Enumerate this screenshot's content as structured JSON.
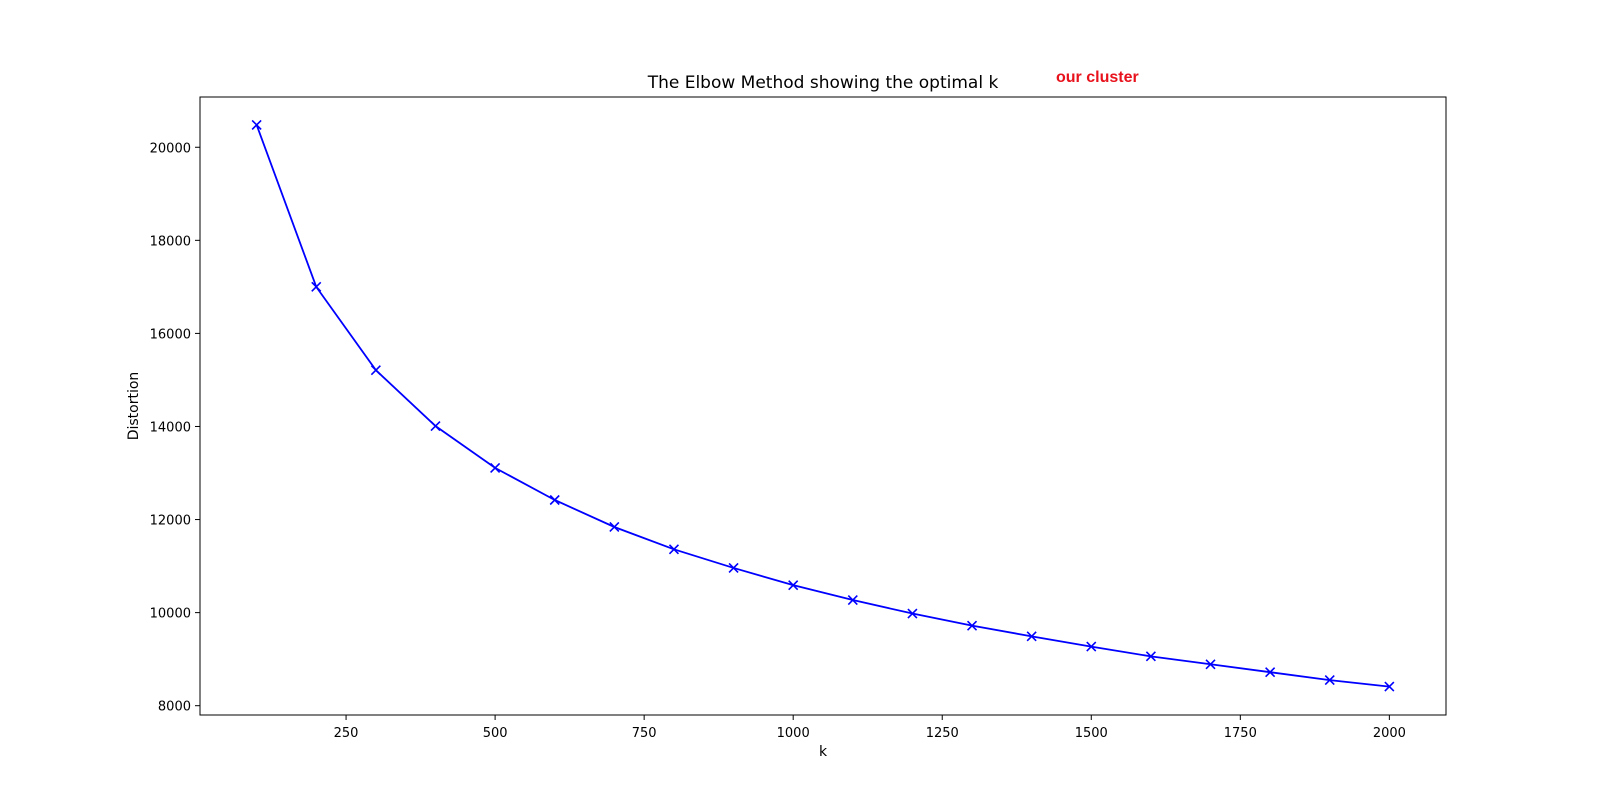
{
  "chart_data": {
    "type": "line",
    "title": "The Elbow Method showing the optimal k",
    "xlabel": "k",
    "ylabel": "Distortion",
    "annotation": {
      "text": "our cluster",
      "color": "#e8121c"
    },
    "series": [
      {
        "color": "#0000ff",
        "marker": "x",
        "x": [
          100,
          200,
          300,
          400,
          500,
          600,
          700,
          800,
          900,
          1000,
          1100,
          1200,
          1300,
          1400,
          1500,
          1600,
          1700,
          1800,
          1900,
          2000
        ],
        "y": [
          20480,
          17000,
          15210,
          14010,
          13110,
          12420,
          11840,
          11360,
          10960,
          10590,
          10270,
          9980,
          9720,
          9490,
          9270,
          9060,
          8890,
          8720,
          8550,
          8410
        ]
      }
    ],
    "xlim": [
      5,
      2095
    ],
    "ylim": [
      7800,
      21080
    ],
    "xticks": [
      250,
      500,
      750,
      1000,
      1250,
      1500,
      1750,
      2000
    ],
    "yticks": [
      8000,
      10000,
      12000,
      14000,
      16000,
      18000,
      20000
    ],
    "grid": false,
    "legend": "none"
  }
}
